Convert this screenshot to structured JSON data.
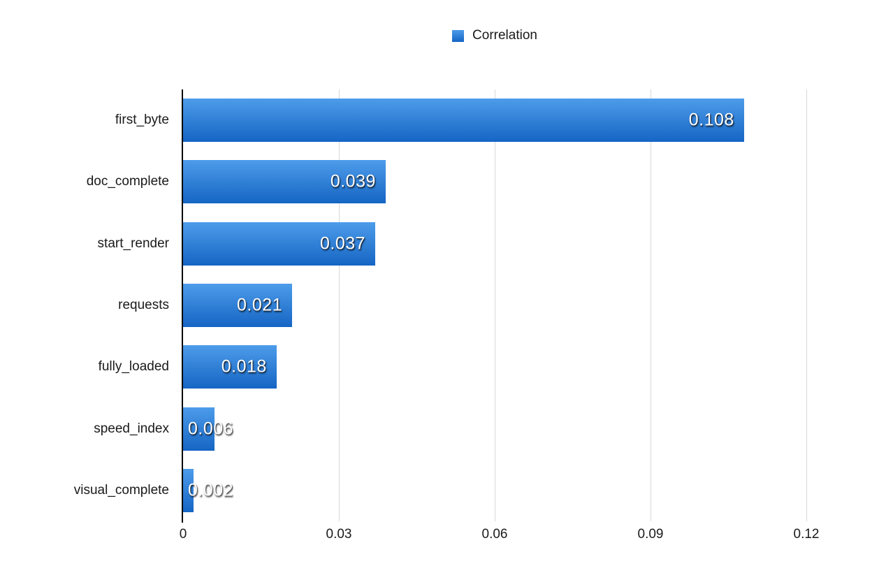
{
  "chart_data": {
    "type": "bar",
    "orientation": "horizontal",
    "legend": {
      "label": "Correlation",
      "position": "top-center"
    },
    "categories": [
      "first_byte",
      "doc_complete",
      "start_render",
      "requests",
      "fully_loaded",
      "speed_index",
      "visual_complete"
    ],
    "values": [
      0.108,
      0.039,
      0.037,
      0.021,
      0.018,
      0.006,
      0.002
    ],
    "value_labels": [
      "0.108",
      "0.039",
      "0.037",
      "0.021",
      "0.018",
      "0.006",
      "0.002"
    ],
    "x_ticks": [
      "0",
      "0.03",
      "0.06",
      "0.09",
      "0.12"
    ],
    "x_tick_values": [
      0,
      0.03,
      0.06,
      0.09,
      0.12
    ],
    "xlim": [
      0,
      0.12
    ],
    "ylabel": "",
    "xlabel": "",
    "grid": true,
    "colors": {
      "bar_gradient_top": "#4D9CEA",
      "bar_gradient_bottom": "#1565C4",
      "gridline": "#D9D9D9",
      "axis_line": "#000000",
      "label_text": "#1A1A1A",
      "value_text": "#FFFFFF",
      "background": "#FFFFFF"
    }
  }
}
